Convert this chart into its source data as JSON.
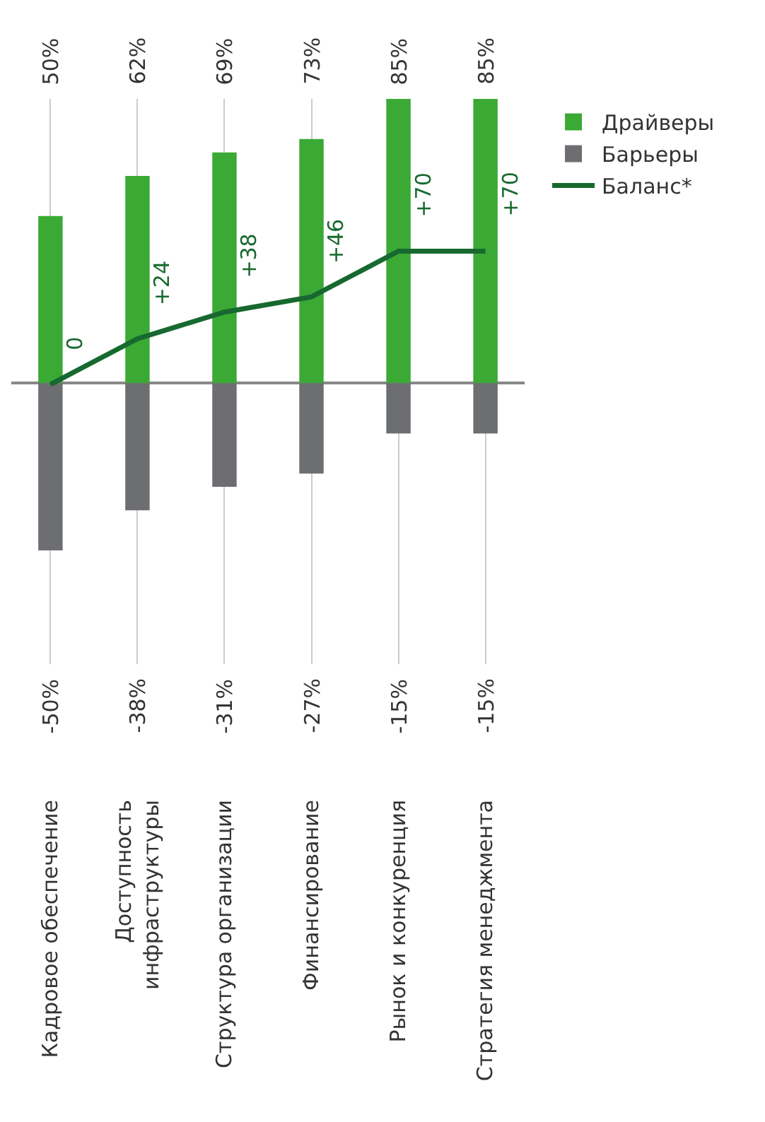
{
  "chart_data": {
    "type": "bar",
    "categories": [
      "Кадровое обеспечение",
      "Доступность\nинфраструктуры",
      "Структура организации",
      "Финансирование",
      "Рынок и конкуренция",
      "Стратегия менеджмента"
    ],
    "series": [
      {
        "name": "Драйверы",
        "color": "#3aaa35",
        "values": [
          50,
          62,
          69,
          73,
          85,
          85
        ],
        "value_labels": [
          "50%",
          "62%",
          "69%",
          "73%",
          "85%",
          "85%"
        ]
      },
      {
        "name": "Барьеры",
        "color": "#6d6e71",
        "values": [
          -50,
          -38,
          -31,
          -27,
          -15,
          -15
        ],
        "value_labels": [
          "-50%",
          "-38%",
          "-31%",
          "-27%",
          "-15%",
          "-15%"
        ]
      },
      {
        "name": "Баланс*",
        "type": "line",
        "axis": "y2",
        "color": "#17692f",
        "marker": "none",
        "values": [
          0,
          24,
          38,
          46,
          70,
          70
        ],
        "value_labels": [
          "0",
          "+24",
          "+38",
          "+46",
          "+70",
          "+70"
        ]
      }
    ],
    "ylim": [
      -84,
      85
    ],
    "y2lim": [
      -147,
      150
    ],
    "grid": "x",
    "stacked": true,
    "legend": "top right"
  }
}
